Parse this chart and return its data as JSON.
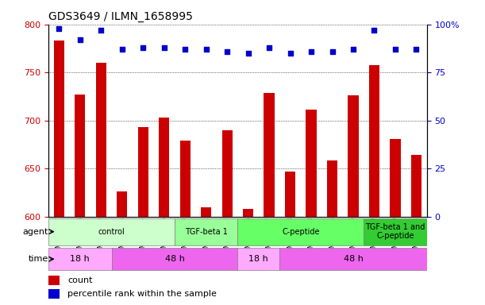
{
  "title": "GDS3649 / ILMN_1658995",
  "samples": [
    "GSM507417",
    "GSM507418",
    "GSM507419",
    "GSM507414",
    "GSM507415",
    "GSM507416",
    "GSM507420",
    "GSM507421",
    "GSM507422",
    "GSM507426",
    "GSM507427",
    "GSM507428",
    "GSM507423",
    "GSM507424",
    "GSM507425",
    "GSM507429",
    "GSM507430",
    "GSM507431"
  ],
  "counts": [
    783,
    727,
    760,
    626,
    693,
    703,
    679,
    610,
    690,
    608,
    729,
    647,
    711,
    658,
    726,
    758,
    681,
    664
  ],
  "percentile_ranks": [
    98,
    92,
    97,
    87,
    88,
    88,
    87,
    87,
    86,
    85,
    88,
    85,
    86,
    86,
    87,
    97,
    87,
    87
  ],
  "bar_color": "#cc0000",
  "dot_color": "#0000cc",
  "ylim_left": [
    600,
    800
  ],
  "ylim_right": [
    0,
    100
  ],
  "yticks_left": [
    600,
    650,
    700,
    750,
    800
  ],
  "yticks_right": [
    0,
    25,
    50,
    75,
    100
  ],
  "agent_groups": [
    {
      "label": "control",
      "start": 0,
      "end": 6,
      "color": "#ccffcc"
    },
    {
      "label": "TGF-beta 1",
      "start": 6,
      "end": 9,
      "color": "#99ff99"
    },
    {
      "label": "C-peptide",
      "start": 9,
      "end": 15,
      "color": "#66ff66"
    },
    {
      "label": "TGF-beta 1 and\nC-peptide",
      "start": 15,
      "end": 18,
      "color": "#33cc33"
    }
  ],
  "time_groups": [
    {
      "label": "18 h",
      "start": 0,
      "end": 3,
      "color": "#ffaaff"
    },
    {
      "label": "48 h",
      "start": 3,
      "end": 9,
      "color": "#ee66ee"
    },
    {
      "label": "18 h",
      "start": 9,
      "end": 11,
      "color": "#ffaaff"
    },
    {
      "label": "48 h",
      "start": 11,
      "end": 18,
      "color": "#ee66ee"
    }
  ],
  "legend_count_color": "#cc0000",
  "legend_dot_color": "#0000cc",
  "background_color": "#ffffff",
  "grid_color": "#000000",
  "tick_label_color_left": "#cc0000",
  "tick_label_color_right": "#0000cc"
}
